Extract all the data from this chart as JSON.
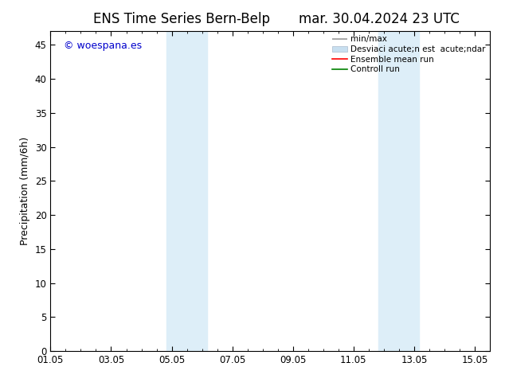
{
  "title_left": "ENS Time Series Bern-Belp",
  "title_right": "mar. 30.04.2024 23 UTC",
  "ylabel": "Precipitation (mm/6h)",
  "xlim_min": 0,
  "xlim_max": 14.5,
  "ylim_min": 0,
  "ylim_max": 47,
  "yticks": [
    0,
    5,
    10,
    15,
    20,
    25,
    30,
    35,
    40,
    45
  ],
  "xtick_labels": [
    "01.05",
    "03.05",
    "05.05",
    "07.05",
    "09.05",
    "11.05",
    "13.05",
    "15.05"
  ],
  "xtick_positions": [
    0,
    2,
    4,
    6,
    8,
    10,
    12,
    14
  ],
  "bg_color": "#ffffff",
  "plot_bg_color": "#ffffff",
  "shaded_regions": [
    {
      "xmin": 3.83,
      "xmax": 5.17,
      "color": "#ddeef8"
    },
    {
      "xmin": 10.83,
      "xmax": 12.17,
      "color": "#ddeef8"
    }
  ],
  "watermark_text": "© woespana.es",
  "watermark_color": "#0000cc",
  "legend_line1_label": "min/max",
  "legend_line2_label": "Desviaci acute;n est  acute;ndar",
  "legend_line3_label": "Ensemble mean run",
  "legend_line4_label": "Controll run",
  "legend_line1_color": "#999999",
  "legend_line2_color": "#c8dff0",
  "legend_line3_color": "#ff0000",
  "legend_line4_color": "#008000",
  "title_fontsize": 12,
  "tick_fontsize": 8.5,
  "legend_fontsize": 7.5,
  "ylabel_fontsize": 9,
  "watermark_fontsize": 9
}
